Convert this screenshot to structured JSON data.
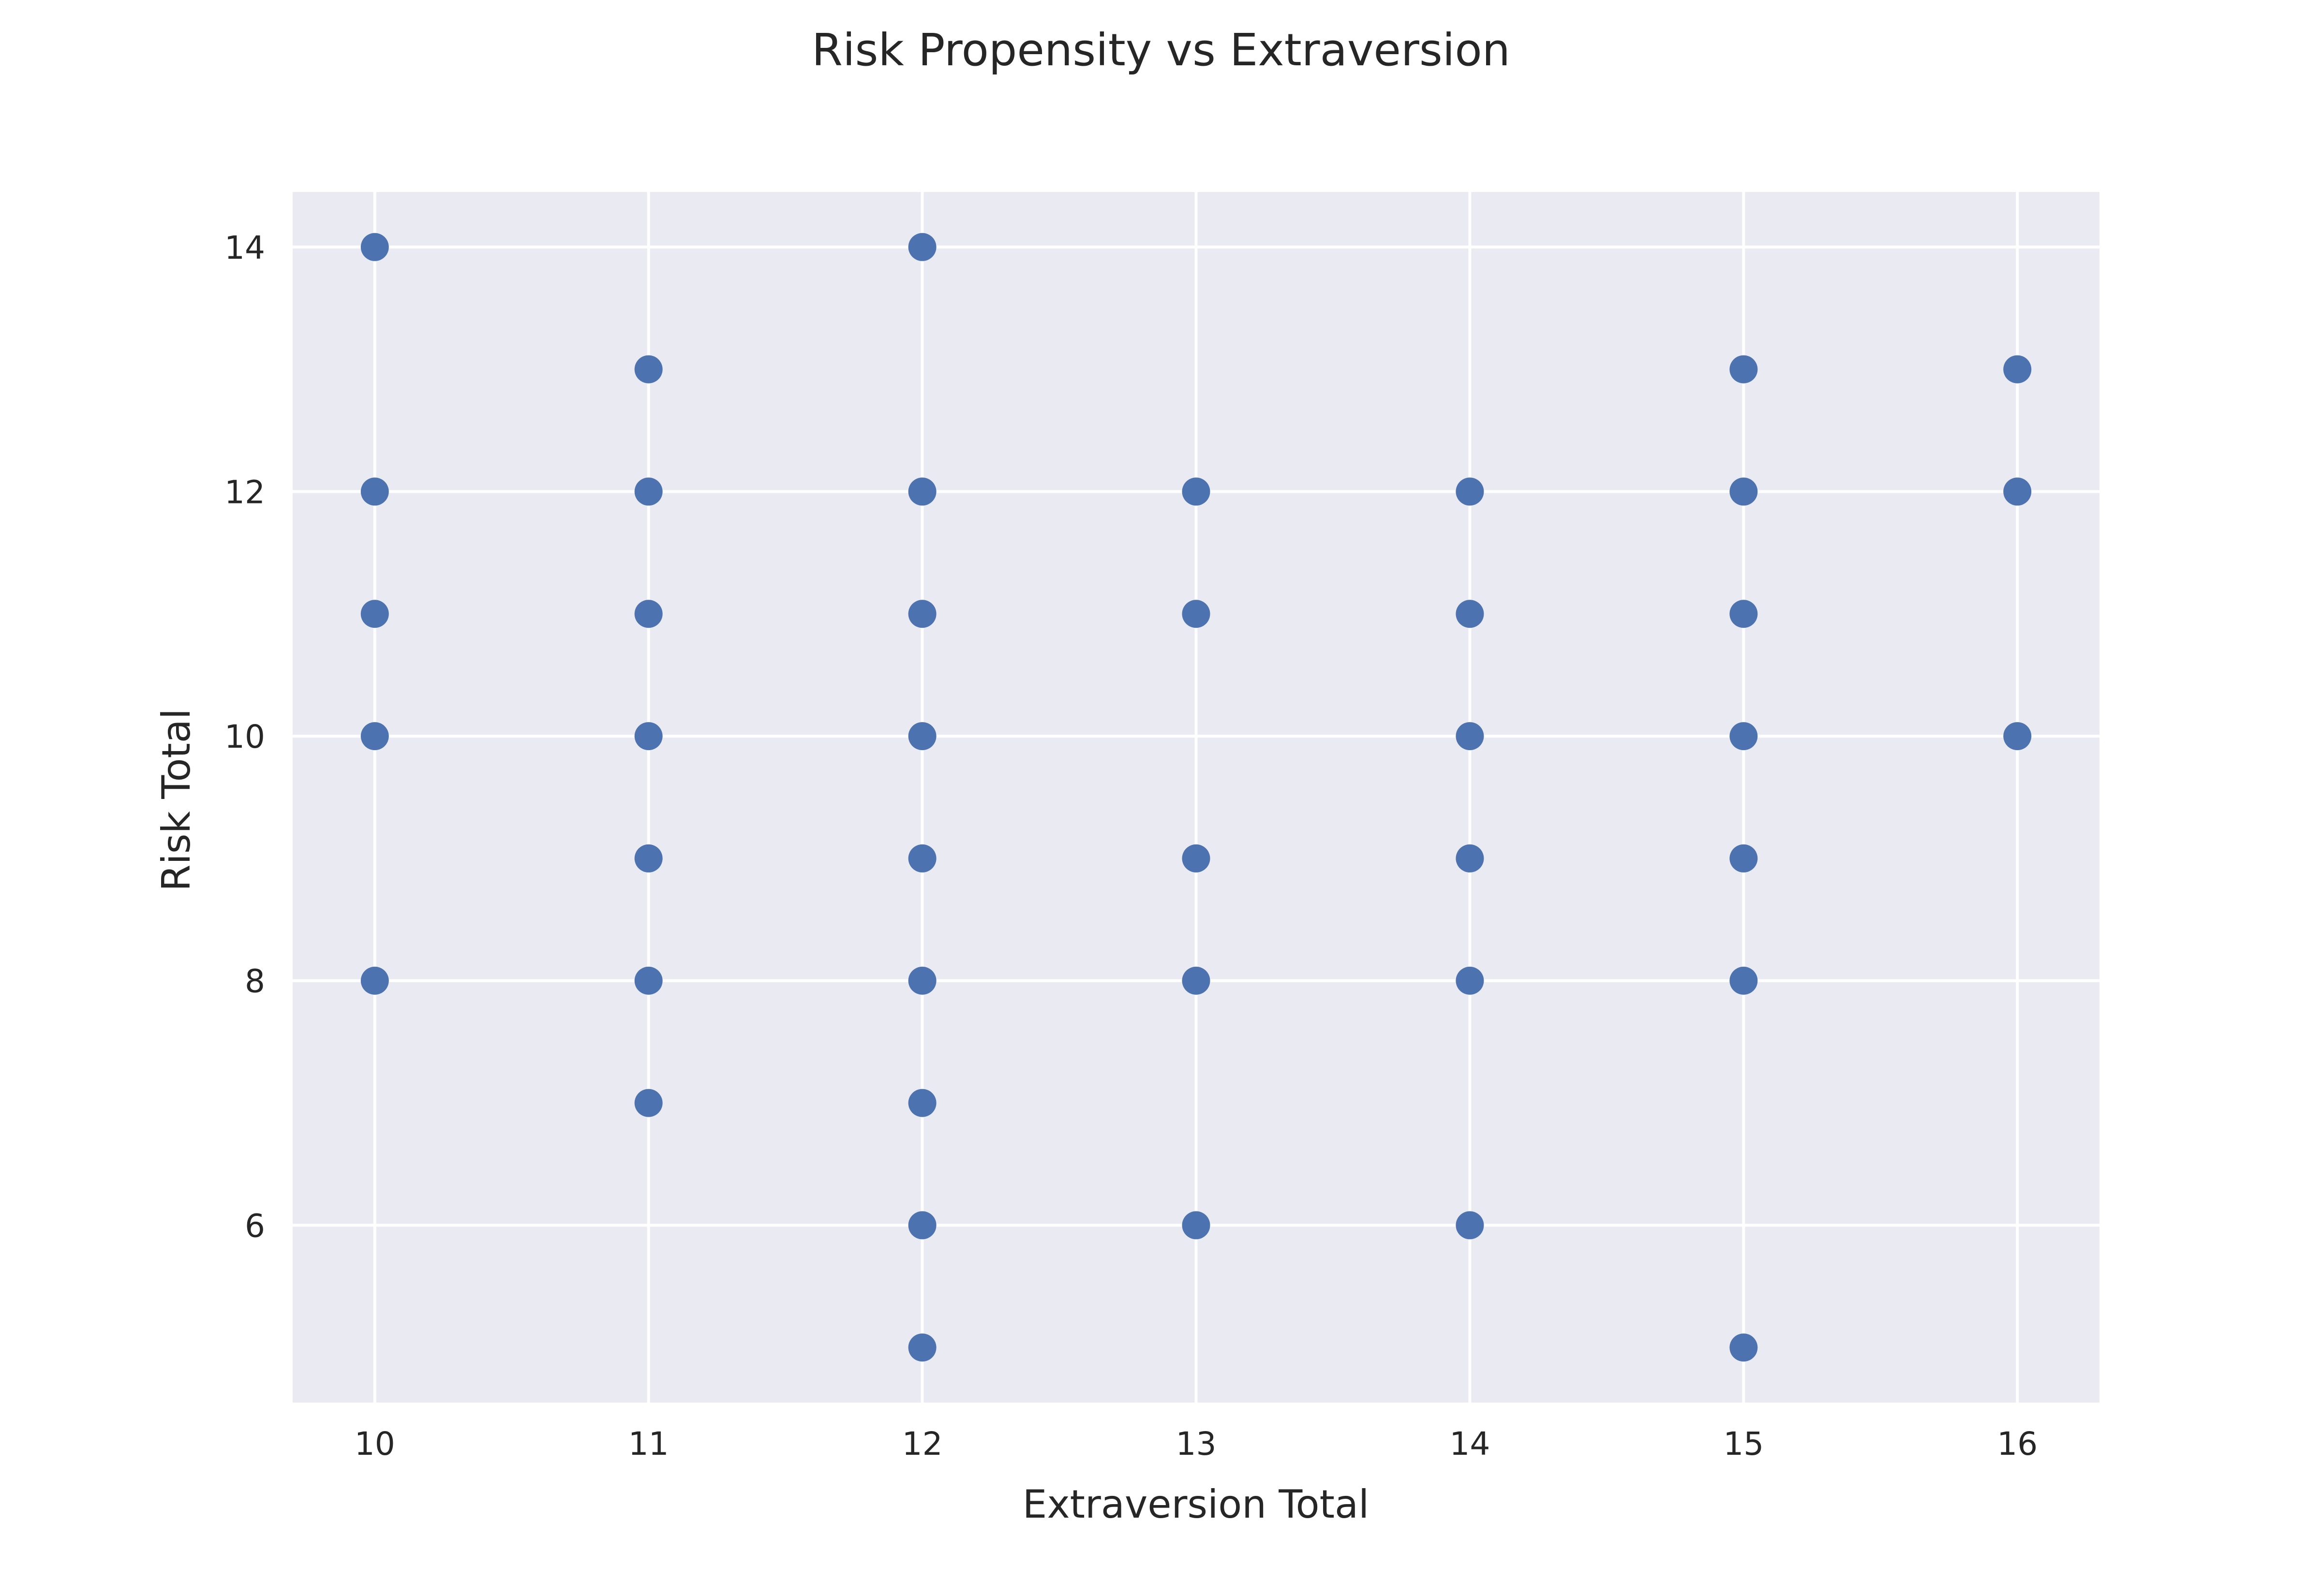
{
  "chart_data": {
    "type": "scatter",
    "title": "Risk Propensity vs Extraversion",
    "xlabel": "Extraversion Total",
    "ylabel": "Risk Total",
    "xlim": [
      9.7,
      16.3
    ],
    "ylim": [
      4.55,
      14.45
    ],
    "xticks": [
      10,
      11,
      12,
      13,
      14,
      15,
      16
    ],
    "yticks": [
      6,
      8,
      10,
      12,
      14
    ],
    "grid": true,
    "colors": {
      "background": "#EAEAF2",
      "grid": "#FFFFFF",
      "marker": "#4C72B0",
      "text": "#262626"
    },
    "points": [
      {
        "x": 10,
        "y": 14
      },
      {
        "x": 10,
        "y": 12
      },
      {
        "x": 10,
        "y": 11
      },
      {
        "x": 10,
        "y": 10
      },
      {
        "x": 10,
        "y": 8
      },
      {
        "x": 11,
        "y": 13
      },
      {
        "x": 11,
        "y": 12
      },
      {
        "x": 11,
        "y": 11
      },
      {
        "x": 11,
        "y": 10
      },
      {
        "x": 11,
        "y": 9
      },
      {
        "x": 11,
        "y": 8
      },
      {
        "x": 11,
        "y": 7
      },
      {
        "x": 12,
        "y": 14
      },
      {
        "x": 12,
        "y": 12
      },
      {
        "x": 12,
        "y": 11
      },
      {
        "x": 12,
        "y": 10
      },
      {
        "x": 12,
        "y": 9
      },
      {
        "x": 12,
        "y": 8
      },
      {
        "x": 12,
        "y": 7
      },
      {
        "x": 12,
        "y": 6
      },
      {
        "x": 12,
        "y": 5
      },
      {
        "x": 13,
        "y": 12
      },
      {
        "x": 13,
        "y": 11
      },
      {
        "x": 13,
        "y": 9
      },
      {
        "x": 13,
        "y": 8
      },
      {
        "x": 13,
        "y": 6
      },
      {
        "x": 14,
        "y": 12
      },
      {
        "x": 14,
        "y": 11
      },
      {
        "x": 14,
        "y": 10
      },
      {
        "x": 14,
        "y": 9
      },
      {
        "x": 14,
        "y": 8
      },
      {
        "x": 14,
        "y": 6
      },
      {
        "x": 15,
        "y": 13
      },
      {
        "x": 15,
        "y": 12
      },
      {
        "x": 15,
        "y": 11
      },
      {
        "x": 15,
        "y": 10
      },
      {
        "x": 15,
        "y": 9
      },
      {
        "x": 15,
        "y": 8
      },
      {
        "x": 15,
        "y": 5
      },
      {
        "x": 16,
        "y": 13
      },
      {
        "x": 16,
        "y": 12
      },
      {
        "x": 16,
        "y": 10
      }
    ]
  }
}
